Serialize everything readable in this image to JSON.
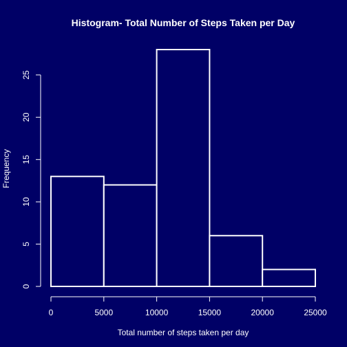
{
  "chart_data": {
    "type": "bar",
    "title": "Histogram- Total Number of Steps Taken per Day",
    "xlabel": "Total number of steps taken per day",
    "ylabel": "Frequency",
    "bins": [
      {
        "start": 0,
        "end": 5000,
        "count": 13
      },
      {
        "start": 5000,
        "end": 10000,
        "count": 12
      },
      {
        "start": 10000,
        "end": 15000,
        "count": 28
      },
      {
        "start": 15000,
        "end": 20000,
        "count": 6
      },
      {
        "start": 20000,
        "end": 25000,
        "count": 2
      }
    ],
    "xlim": [
      0,
      25000
    ],
    "ylim": [
      0,
      28
    ],
    "x_ticks": [
      0,
      5000,
      10000,
      15000,
      20000,
      25000
    ],
    "y_ticks": [
      0,
      5,
      10,
      15,
      20,
      25
    ],
    "grid": false,
    "legend": "none",
    "colors": {
      "background": "#000066",
      "foreground": "#ffffff",
      "bar_fill": "#000066",
      "bar_border": "#ffffff"
    }
  }
}
